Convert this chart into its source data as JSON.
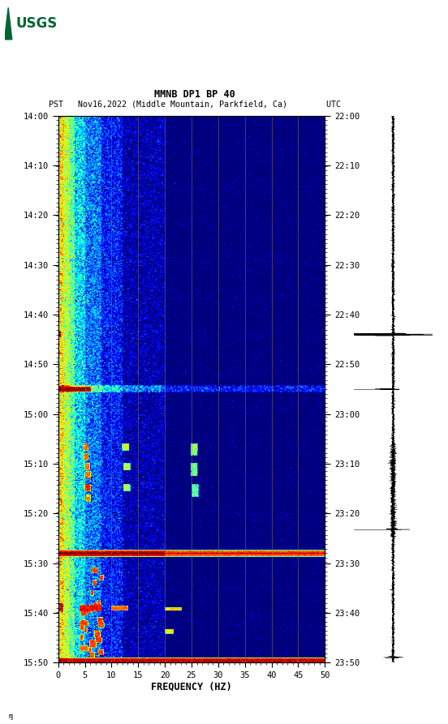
{
  "title_line1": "MMNB DP1 BP 40",
  "title_line2": "PST   Nov16,2022 (Middle Mountain, Parkfield, Ca)        UTC",
  "xlabel": "FREQUENCY (HZ)",
  "freq_min": 0,
  "freq_max": 50,
  "freq_ticks": [
    0,
    5,
    10,
    15,
    20,
    25,
    30,
    35,
    40,
    45,
    50
  ],
  "time_labels_pst": [
    "14:00",
    "14:10",
    "14:20",
    "14:30",
    "14:40",
    "14:50",
    "15:00",
    "15:10",
    "15:20",
    "15:30",
    "15:40",
    "15:50"
  ],
  "time_labels_utc": [
    "22:00",
    "22:10",
    "22:20",
    "22:30",
    "22:40",
    "22:50",
    "23:00",
    "23:10",
    "23:20",
    "23:30",
    "23:40",
    "23:50"
  ],
  "n_time": 660,
  "n_freq": 500,
  "vert_lines_freq": [
    5,
    10,
    15,
    20,
    25,
    30,
    35,
    40,
    45
  ],
  "usgs_color": "#006633",
  "vline_color": "#8B7355",
  "vline_alpha": 0.6,
  "vmin": 0.001,
  "vmax": 1.0
}
